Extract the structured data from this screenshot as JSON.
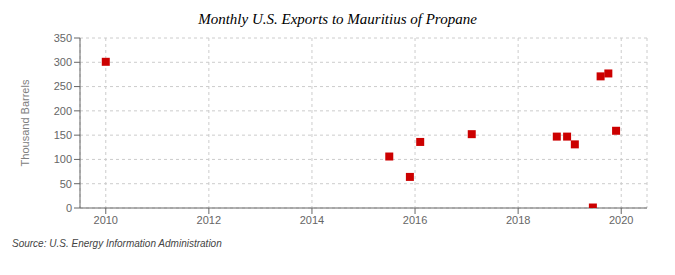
{
  "chart_data": {
    "type": "scatter",
    "title": "Monthly U.S. Exports to Mauritius of Propane",
    "ylabel": "Thousand Barrels",
    "annotations": [
      "Source: U.S. Energy Information Administration"
    ],
    "x": [
      2010.0,
      2015.5,
      2015.9,
      2016.1,
      2017.1,
      2018.75,
      2018.95,
      2019.1,
      2019.45,
      2019.6,
      2019.75,
      2019.9
    ],
    "values": [
      301,
      106,
      64,
      136,
      152,
      147,
      147,
      131,
      1,
      271,
      277,
      159
    ],
    "color": "#cc0000",
    "marker": "square",
    "xlim": [
      2009.5,
      2020.5
    ],
    "ylim": [
      0,
      350
    ],
    "xticks": [
      2010,
      2012,
      2014,
      2016,
      2018,
      2020
    ],
    "yticks": [
      0,
      50,
      100,
      150,
      200,
      250,
      300,
      350
    ],
    "grid": true
  }
}
